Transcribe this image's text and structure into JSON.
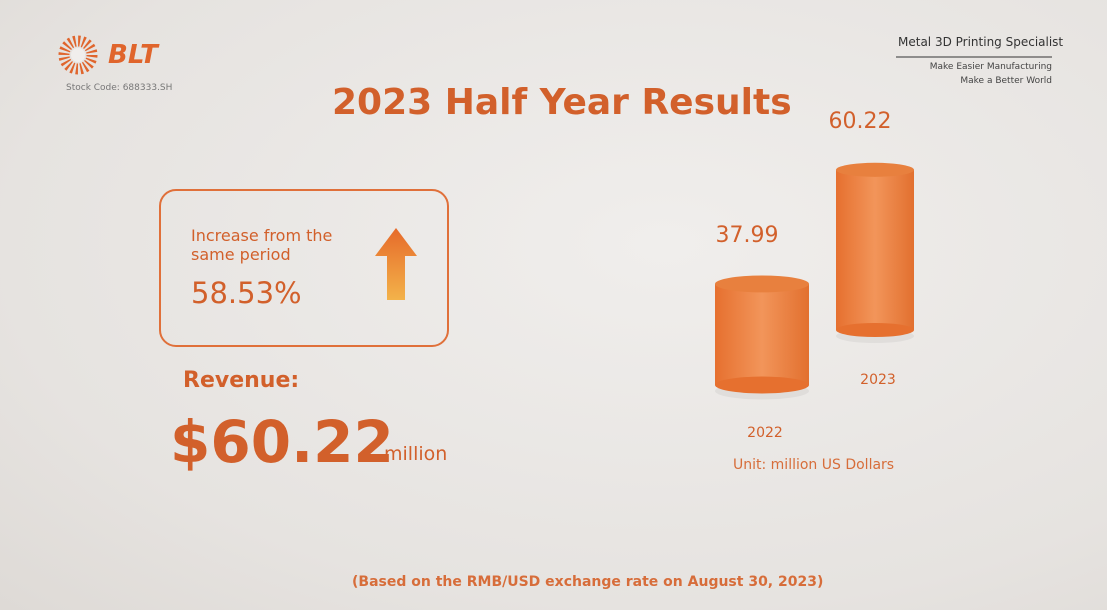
{
  "logo": {
    "brand": "BLT",
    "stock_code": "Stock Code: 688333.SH"
  },
  "tagline": {
    "title": "Metal 3D Printing Specialist",
    "line1": "Make Easier Manufacturing",
    "line2": "Make a Better World"
  },
  "title": "2023 Half Year Results",
  "highlight": {
    "label": "Increase from the same period",
    "value": "58.53%"
  },
  "revenue": {
    "label": "Revenue:",
    "value": "$60.22",
    "unit": "million"
  },
  "footnote": "(Based on the RMB/USD exchange rate on August 30, 2023)",
  "chart_data": {
    "type": "bar",
    "categories": [
      "2022",
      "2023"
    ],
    "values": [
      37.99,
      60.22
    ],
    "color": "#e8803e",
    "caption": "Unit: million US Dollars"
  }
}
